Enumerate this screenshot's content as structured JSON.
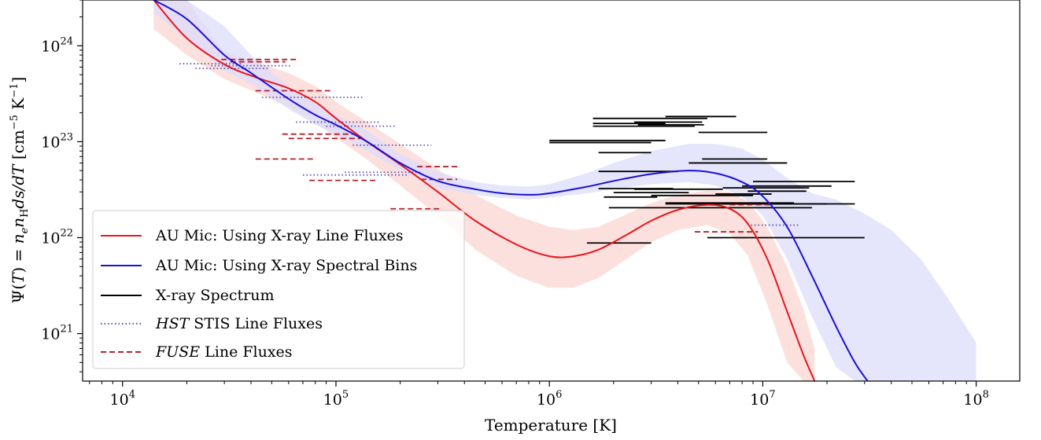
{
  "chart_data": {
    "type": "line",
    "xlabel": "Temperature [K]",
    "ylabel": "Ψ(T) = n_e n_H ds/dT [cm⁻⁵ K⁻¹]",
    "x_scale": "log",
    "y_scale": "log",
    "xlim": [
      6500,
      160000000
    ],
    "ylim": [
      3.2e+20,
      3e+24
    ],
    "x_ticks": [
      {
        "value": 10000,
        "base": "10",
        "exp": "4"
      },
      {
        "value": 100000,
        "base": "10",
        "exp": "5"
      },
      {
        "value": 1000000,
        "base": "10",
        "exp": "6"
      },
      {
        "value": 10000000,
        "base": "10",
        "exp": "7"
      },
      {
        "value": 100000000,
        "base": "10",
        "exp": "8"
      }
    ],
    "y_ticks": [
      {
        "value": 1e+21,
        "base": "10",
        "exp": "21"
      },
      {
        "value": 1e+22,
        "base": "10",
        "exp": "22"
      },
      {
        "value": 1e+23,
        "base": "10",
        "exp": "23"
      },
      {
        "value": 1e+24,
        "base": "10",
        "exp": "24"
      }
    ],
    "grid": false,
    "legend_position": "lower-left",
    "legend": [
      {
        "label": "AU Mic: Using X-ray Line Fluxes",
        "style": "solid",
        "color": "#e8151b"
      },
      {
        "label": "AU Mic: Using X-ray Spectral Bins",
        "style": "solid",
        "color": "#1a10d8"
      },
      {
        "label": "X-ray Spectrum",
        "style": "solid",
        "color": "#000000"
      },
      {
        "label_italic": "HST",
        "label": " STIS Line Fluxes",
        "style": "dotted",
        "color": "#5c4fa8"
      },
      {
        "label_italic": "FUSE",
        "label": " Line Fluxes",
        "style": "dashed",
        "color": "#b5222e"
      }
    ],
    "series": [
      {
        "name": "AU Mic: Using X-ray Line Fluxes",
        "color": "#e8151b",
        "band_color": "#fbd8d6",
        "x": [
          14000.0,
          20000.0,
          30000.0,
          42000.0,
          60000.0,
          80000.0,
          100000.0,
          140000.0,
          200000.0,
          300000.0,
          450000.0,
          700000.0,
          1000000.0,
          1300000.0,
          1700000.0,
          2300000.0,
          3000000.0,
          4000000.0,
          5500000.0,
          7000000.0,
          8500000.0,
          10500000.0,
          13000000.0,
          15500000.0,
          17500000.0
        ],
        "y": [
          3e+24,
          1.2e+24,
          6.4e+23,
          4.7e+23,
          3.6e+23,
          2.6e+23,
          1.75e+23,
          1e+23,
          5.8e+22,
          3e+22,
          1.5e+22,
          8.5e+21,
          6.4e+21,
          6.4e+21,
          7.5e+21,
          1.07e+22,
          1.5e+22,
          1.95e+22,
          2.2e+22,
          2e+22,
          1.4e+22,
          6e+21,
          1.7e+21,
          6e+20,
          3.2e+20
        ],
        "y_low": [
          1.5e+24,
          8e+23,
          4.5e+23,
          3.3e+23,
          2.3e+23,
          1.6e+23,
          1.1e+23,
          6.5e+22,
          3.5e+22,
          1.7e+22,
          7.5e+21,
          4e+21,
          3e+21,
          3e+21,
          3.8e+21,
          6e+21,
          9e+21,
          1.2e+22,
          1.35e+22,
          1.1e+22,
          6.5e+21,
          2e+21,
          5e+20,
          3.2e+20,
          3.2e+20
        ],
        "y_high": [
          3e+24,
          3e+24,
          8.5e+23,
          6.8e+23,
          5.2e+23,
          3.8e+23,
          2.6e+23,
          1.6e+23,
          9.5e+22,
          5.2e+22,
          2.8e+22,
          1.7e+22,
          1.3e+22,
          1.2e+22,
          1.3e+22,
          1.75e+22,
          2.3e+22,
          2.8e+22,
          3.1e+22,
          3e+22,
          2.4e+22,
          1.3e+22,
          5e+21,
          1.8e+21,
          7e+20
        ]
      },
      {
        "name": "AU Mic: Using X-ray Spectral Bins",
        "color": "#1a10d8",
        "band_color": "#dcdcfb",
        "x": [
          14000.0,
          20000.0,
          30000.0,
          40000.0,
          60000.0,
          80000.0,
          100000.0,
          140000.0,
          200000.0,
          300000.0,
          450000.0,
          600000.0,
          800000.0,
          1000000.0,
          1500000.0,
          2000000.0,
          3000000.0,
          4500000.0,
          6000000.0,
          8000000.0,
          10000000.0,
          13000000.0,
          17000000.0,
          22000000.0,
          27000000.0,
          31000000.0
        ],
        "y": [
          3e+24,
          1.9e+24,
          8e+23,
          5.2e+23,
          2.8e+23,
          1.9e+23,
          1.5e+23,
          1e+23,
          6e+22,
          3.9e+22,
          3.2e+22,
          2.9e+22,
          2.8e+22,
          2.9e+22,
          3.4e+22,
          3.9e+22,
          4.6e+22,
          5e+22,
          4.7e+22,
          3.8e+22,
          2.7e+22,
          1.3e+22,
          4e+21,
          1.2e+21,
          5e+20,
          3.2e+20
        ],
        "y_low": [
          2.2e+24,
          1.2e+24,
          5.5e+23,
          4e+23,
          2.2e+23,
          1.5e+23,
          1.2e+23,
          8e+22,
          5e+22,
          3.3e+22,
          2.8e+22,
          2.6e+22,
          2.5e+22,
          2.6e+22,
          2.9e+22,
          3.2e+22,
          3.6e+22,
          3.8e+22,
          3.5e+22,
          2.7e+22,
          1.7e+22,
          6e+21,
          1.5e+21,
          4.5e+20,
          3.2e+20,
          3.2e+20
        ],
        "y_high": [
          3e+24,
          3e+24,
          1.6e+24,
          8e+23,
          3.8e+23,
          2.5e+23,
          1.9e+23,
          1.3e+23,
          7.5e+22,
          4.8e+22,
          3.8e+22,
          3.5e+22,
          3.4e+22,
          3.6e+22,
          4.7e+22,
          6e+22,
          8e+22,
          9.5e+22,
          9.5e+22,
          8.5e+22,
          6.5e+22,
          4.2e+22,
          2.9e+22,
          2.5e+22,
          2e+22,
          1.7e+22
        ]
      }
    ],
    "band_extension": {
      "series": "AU Mic: Using X-ray Spectral Bins",
      "x": [
        31000000.0,
        40000000.0,
        55000000.0,
        75000000.0,
        100000000.0
      ],
      "y_low": [
        3.2e+20,
        3.2e+20,
        3.2e+20,
        3.2e+20,
        3.2e+20
      ],
      "y_high": [
        1.7e+22,
        1.2e+22,
        6e+21,
        2.2e+21,
        8e+20
      ]
    },
    "xray_spectrum_segments": [
      {
        "x": [
          1500000.0,
          3000000.0
        ],
        "y": 8.8e+21
      },
      {
        "x": [
          5500000.0,
          30000000.0
        ],
        "y": 1e+22
      },
      {
        "x": [
          1900000.0,
          17000000.0
        ],
        "y": 2.05e+22
      },
      {
        "x": [
          3500000.0,
          14000000.0
        ],
        "y": 2.3e+22
      },
      {
        "x": [
          3500000.0,
          27000000.0
        ],
        "y": 2.25e+22
      },
      {
        "x": [
          5000000.0,
          20000000.0
        ],
        "y": 2.25e+22
      },
      {
        "x": [
          1800000.0,
          3200000.0
        ],
        "y": 2.65e+22
      },
      {
        "x": [
          3000000.0,
          9000000.0
        ],
        "y": 2.75e+22
      },
      {
        "x": [
          2000000.0,
          4500000.0
        ],
        "y": 2.95e+22
      },
      {
        "x": [
          6000000.0,
          11000000.0
        ],
        "y": 2.85e+22
      },
      {
        "x": [
          1700000.0,
          3800000.0
        ],
        "y": 3.25e+22
      },
      {
        "x": [
          2500000.0,
          6500000.0
        ],
        "y": 3.2e+22
      },
      {
        "x": [
          6500000.0,
          16500000.0
        ],
        "y": 3.3e+22
      },
      {
        "x": [
          8500000.0,
          16000000.0
        ],
        "y": 3.05e+22
      },
      {
        "x": [
          8000000.0,
          21000000.0
        ],
        "y": 3.45e+22
      },
      {
        "x": [
          9000000.0,
          27000000.0
        ],
        "y": 3.85e+22
      },
      {
        "x": [
          1700000.0,
          4000000.0
        ],
        "y": 4.9e+22
      },
      {
        "x": [
          4500000.0,
          13000000.0
        ],
        "y": 6e+22
      },
      {
        "x": [
          5200000.0,
          10500000.0
        ],
        "y": 6.6e+22
      },
      {
        "x": [
          1700000.0,
          3000000.0
        ],
        "y": 7.7e+22
      },
      {
        "x": [
          1000000.0,
          3000000.0
        ],
        "y": 9.8e+22
      },
      {
        "x": [
          1000000.0,
          3500000.0
        ],
        "y": 1.03e+23
      },
      {
        "x": [
          5000000.0,
          10500000.0
        ],
        "y": 1.25e+23
      },
      {
        "x": [
          1600000.0,
          4800000.0
        ],
        "y": 1.45e+23
      },
      {
        "x": [
          2600000.0,
          5300000.0
        ],
        "y": 1.5e+23
      },
      {
        "x": [
          1600000.0,
          3500000.0
        ],
        "y": 1.55e+23
      },
      {
        "x": [
          2500000.0,
          5200000.0
        ],
        "y": 1.6e+23
      },
      {
        "x": [
          1600000.0,
          5500000.0
        ],
        "y": 1.75e+23
      },
      {
        "x": [
          3500000.0,
          7500000.0
        ],
        "y": 1.83e+23
      }
    ],
    "hst_stis_segments": [
      {
        "x": [
          18500.0,
          36000.0
        ],
        "y": 6.5e+23
      },
      {
        "x": [
          22000.0,
          48000.0
        ],
        "y": 5.8e+23
      },
      {
        "x": [
          26000.0,
          62000.0
        ],
        "y": 6.2e+23
      },
      {
        "x": [
          45000.0,
          135000.0
        ],
        "y": 2.9e+23
      },
      {
        "x": [
          65000.0,
          160000.0
        ],
        "y": 1.6e+23
      },
      {
        "x": [
          90000.0,
          190000.0
        ],
        "y": 1.45e+23
      },
      {
        "x": [
          120000.0,
          280000.0
        ],
        "y": 9.2e+22
      },
      {
        "x": [
          110000.0,
          250000.0
        ],
        "y": 4.8e+22
      },
      {
        "x": [
          70000.0,
          220000.0
        ],
        "y": 4.5e+22
      },
      {
        "x": [
          8800000.0,
          15000000.0
        ],
        "y": 1.35e+22
      }
    ],
    "fuse_segments": [
      {
        "x": [
          29000.0,
          65000.0
        ],
        "y": 7.2e+23
      },
      {
        "x": [
          32000.0,
          58000.0
        ],
        "y": 6.8e+23
      },
      {
        "x": [
          42000.0,
          95000.0
        ],
        "y": 3.4e+23
      },
      {
        "x": [
          56000.0,
          120000.0
        ],
        "y": 1.2e+23
      },
      {
        "x": [
          60000.0,
          130000.0
        ],
        "y": 1.08e+23
      },
      {
        "x": [
          42000.0,
          80000.0
        ],
        "y": 6.6e+22
      },
      {
        "x": [
          75000.0,
          155000.0
        ],
        "y": 3.95e+22
      },
      {
        "x": [
          240000.0,
          370000.0
        ],
        "y": 5.5e+22
      },
      {
        "x": [
          250000.0,
          370000.0
        ],
        "y": 4.05e+22
      },
      {
        "x": [
          180000.0,
          310000.0
        ],
        "y": 2e+22
      },
      {
        "x": [
          4800000.0,
          9500000.0
        ],
        "y": 1.15e+22
      },
      {
        "x": [
          7000000.0,
          11000000.0
        ],
        "y": 2.2e+22
      }
    ]
  }
}
